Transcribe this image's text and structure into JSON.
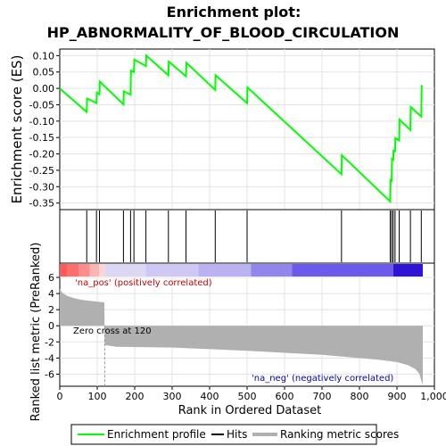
{
  "title_line1": "Enrichment plot:",
  "title_line2": "HP_ABNORMALITY_OF_BLOOD_CIRCULATION",
  "colors": {
    "es_line": "#00ff00",
    "hits": "#000000",
    "metric_fill": "#b0b0b0",
    "pos_label": "#cc0000",
    "neg_label": "#0000cc",
    "zero_cross_line": "#999999"
  },
  "chart_data": [
    {
      "type": "line",
      "name": "enrichment-profile",
      "ylabel": "Enrichment score (ES)",
      "xlim": [
        0,
        1000
      ],
      "ylim": [
        -0.37,
        0.12
      ],
      "yticks": [
        0.1,
        0.05,
        0.0,
        -0.05,
        -0.1,
        -0.15,
        -0.2,
        -0.25,
        -0.3,
        -0.35
      ],
      "ytick_labels": [
        "0.10",
        "0.05",
        "0.00",
        "-0.05",
        "-0.10",
        "-0.15",
        "-0.20",
        "-0.25",
        "-0.30",
        "-0.35"
      ],
      "grid": true,
      "series": [
        {
          "name": "Enrichment profile",
          "x": [
            0,
            72,
            73,
            98,
            99,
            106,
            107,
            170,
            171,
            189,
            190,
            198,
            199,
            230,
            231,
            290,
            291,
            337,
            338,
            415,
            416,
            500,
            501,
            752,
            753,
            882,
            883,
            886,
            887,
            890,
            891,
            895,
            896,
            906,
            907,
            936,
            937,
            965,
            966,
            969
          ],
          "y": [
            0.0,
            -0.072,
            -0.031,
            -0.045,
            -0.013,
            -0.018,
            0.021,
            -0.049,
            -0.009,
            -0.019,
            0.054,
            0.05,
            0.088,
            0.068,
            0.1,
            0.04,
            0.082,
            0.037,
            0.078,
            -0.005,
            0.04,
            -0.045,
            0.003,
            -0.262,
            -0.204,
            -0.345,
            -0.28,
            -0.282,
            -0.215,
            -0.218,
            -0.19,
            -0.192,
            -0.152,
            -0.159,
            -0.095,
            -0.127,
            -0.057,
            -0.086,
            0.007,
            0.005
          ]
        }
      ]
    },
    {
      "type": "hits",
      "name": "hits",
      "hit_positions": [
        72,
        98,
        106,
        170,
        189,
        198,
        230,
        290,
        337,
        415,
        500,
        752,
        882,
        886,
        890,
        895,
        906,
        936,
        965
      ]
    },
    {
      "type": "area",
      "name": "ranked-list-metric",
      "ylabel": "Ranked list metric (PreRanked)",
      "xlabel": "Rank in Ordered Dataset",
      "xlim": [
        0,
        1000
      ],
      "ylim": [
        -7.5,
        6
      ],
      "xticks": [
        0,
        100,
        200,
        300,
        400,
        500,
        600,
        700,
        800,
        900,
        1000
      ],
      "xtick_labels": [
        "0",
        "100",
        "200",
        "300",
        "400",
        "500",
        "600",
        "700",
        "800",
        "900",
        "1,000"
      ],
      "yticks": [
        6,
        4,
        2,
        0,
        -2,
        -4,
        -6
      ],
      "ytick_labels": [
        "6",
        "4",
        "2",
        "0",
        "-2",
        "-4",
        "-6"
      ],
      "grid": true,
      "x": [
        0,
        5,
        10,
        20,
        40,
        60,
        80,
        100,
        119,
        120,
        150,
        300,
        500,
        700,
        850,
        900,
        930,
        950,
        960,
        965,
        968,
        969
      ],
      "values": [
        4.6,
        4.2,
        4.0,
        3.7,
        3.4,
        3.2,
        3.1,
        3.0,
        2.9,
        -2.4,
        -2.6,
        -2.7,
        -3.1,
        -3.6,
        -4.2,
        -4.5,
        -4.9,
        -5.4,
        -6.0,
        -6.8,
        -7.2,
        -7.3
      ],
      "annotations": {
        "zero_cross": "Zero cross at 120",
        "pos_label": "'na_pos' (positively correlated)",
        "neg_label": "'na_neg' (negatively correlated)"
      },
      "zero_cross_x": 120
    }
  ],
  "legend": {
    "placement": "bottom",
    "items": [
      {
        "label": "Enrichment profile",
        "color": "#00ff00"
      },
      {
        "label": "Hits",
        "color": "#000000"
      },
      {
        "label": "Ranking metric scores",
        "color": "#b0b0b0"
      }
    ]
  }
}
